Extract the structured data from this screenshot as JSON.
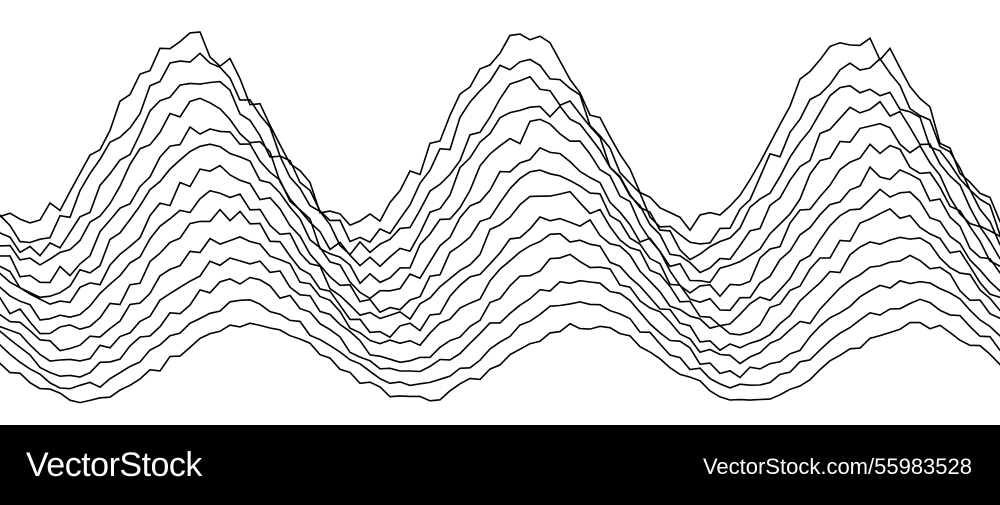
{
  "artwork": {
    "subject": "wave-lines",
    "line_count": 14,
    "peak_count": 3,
    "line_color": "#000000",
    "background_color": "#ffffff"
  },
  "footer": {
    "background_color": "#000000",
    "text_color": "#ffffff",
    "brand": "VectorStock",
    "image_id": "VectorStock.com/55983528"
  }
}
